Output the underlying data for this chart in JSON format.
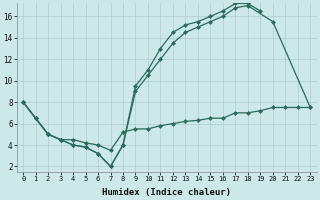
{
  "xlabel": "Humidex (Indice chaleur)",
  "bg_color": "#cce8e8",
  "line_color": "#2a6b5a",
  "grid_color": "#b0cccc",
  "xlim_min": -0.5,
  "xlim_max": 23.5,
  "ylim_min": 1.5,
  "ylim_max": 17.2,
  "yticks": [
    2,
    4,
    6,
    8,
    10,
    12,
    14,
    16
  ],
  "xticks": [
    0,
    1,
    2,
    3,
    4,
    5,
    6,
    7,
    8,
    9,
    10,
    11,
    12,
    13,
    14,
    15,
    16,
    17,
    18,
    19,
    20,
    21,
    22,
    23
  ],
  "curve1_x": [
    0,
    1,
    2,
    3,
    4,
    5,
    6,
    7,
    8,
    9,
    10,
    11,
    12,
    13,
    14,
    15,
    16,
    17,
    18,
    19
  ],
  "curve1_y": [
    8,
    6.5,
    5,
    4.5,
    4.0,
    3.8,
    3.2,
    2.0,
    4.0,
    9.5,
    11,
    13,
    14.5,
    15.2,
    15.5,
    16.0,
    16.5,
    17.2,
    17.2,
    16.5
  ],
  "curve2_x": [
    0,
    1,
    2,
    3,
    4,
    5,
    6,
    7,
    8,
    9,
    10,
    11,
    12,
    13,
    14,
    15,
    16,
    17,
    18,
    20,
    23
  ],
  "curve2_y": [
    8,
    6.5,
    5,
    4.5,
    4.0,
    3.8,
    3.2,
    2.0,
    4.0,
    9.0,
    10.5,
    12,
    13.5,
    14.5,
    15.0,
    15.5,
    16.0,
    16.8,
    17.0,
    15.5,
    7.5
  ],
  "curve3_x": [
    0,
    1,
    2,
    3,
    4,
    5,
    6,
    7,
    8,
    9,
    10,
    11,
    12,
    13,
    14,
    15,
    16,
    17,
    18,
    19,
    20,
    21,
    22,
    23
  ],
  "curve3_y": [
    8,
    6.5,
    5.0,
    4.5,
    4.5,
    4.2,
    4.0,
    3.5,
    5.2,
    5.5,
    5.5,
    5.8,
    6.0,
    6.2,
    6.3,
    6.5,
    6.5,
    7.0,
    7.0,
    7.2,
    7.5,
    7.5,
    7.5,
    7.5
  ]
}
